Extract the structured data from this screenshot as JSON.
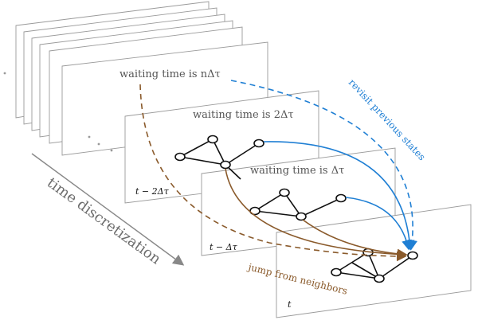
{
  "layers": {
    "n": {
      "waiting": "waiting time is nΔτ"
    },
    "two": {
      "waiting": "waiting time is 2Δτ",
      "time": "t − 2Δτ"
    },
    "one": {
      "waiting": "waiting time is Δτ",
      "time": "t − Δτ"
    },
    "current": {
      "time": "t"
    }
  },
  "annotations": {
    "revisit": "revisit previous states",
    "jump": "jump from neighbors",
    "discretization": "time discretization"
  },
  "colors": {
    "blue": "#1f7fd4",
    "brown": "#8a5a2b",
    "gray": "#888888"
  }
}
